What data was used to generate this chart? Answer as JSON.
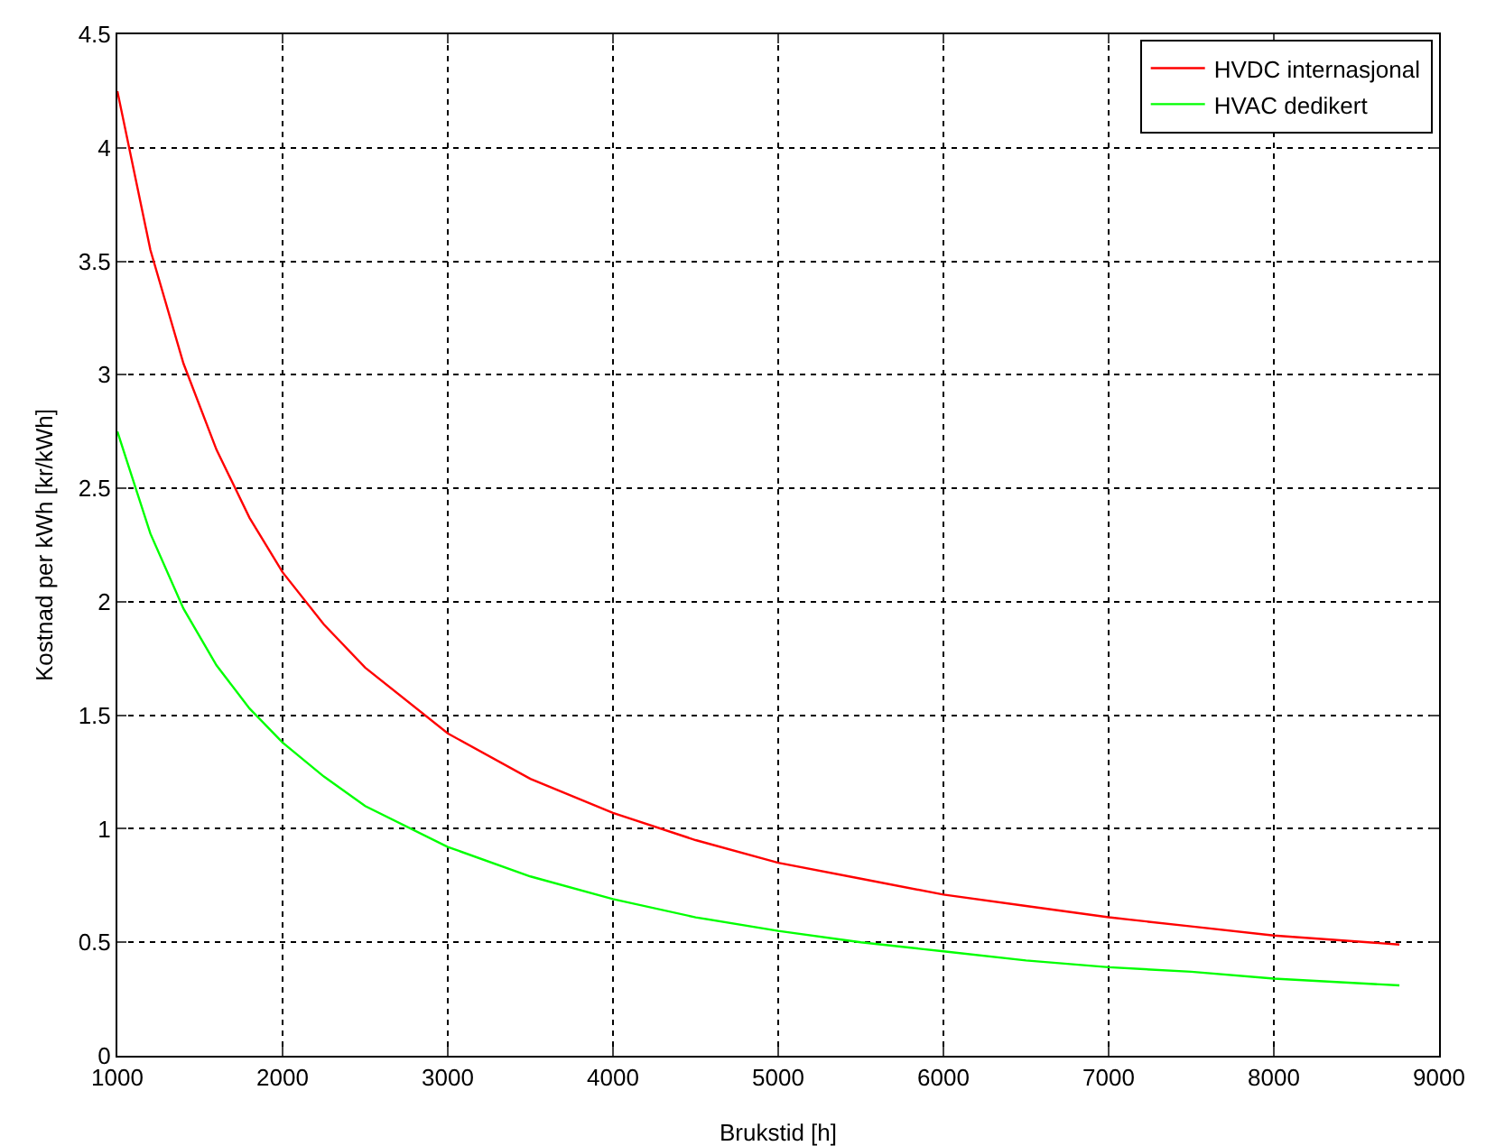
{
  "chart_data": {
    "type": "line",
    "xlabel": "Brukstid [h]",
    "ylabel": "Kostnad per kWh [kr/kWh]",
    "x": [
      1000,
      1200,
      1400,
      1600,
      1800,
      2000,
      2250,
      2500,
      3000,
      3500,
      4000,
      4500,
      5000,
      5500,
      6000,
      6500,
      7000,
      7500,
      8000,
      8760
    ],
    "series": [
      {
        "name": "HVDC internasjonal",
        "color": "#ff0000",
        "values": [
          4.25,
          3.55,
          3.05,
          2.67,
          2.37,
          2.13,
          1.9,
          1.71,
          1.42,
          1.22,
          1.07,
          0.95,
          0.85,
          0.78,
          0.71,
          0.66,
          0.61,
          0.57,
          0.53,
          0.49
        ]
      },
      {
        "name": "HVAC dedikert",
        "color": "#00ff00",
        "values": [
          2.75,
          2.3,
          1.97,
          1.72,
          1.53,
          1.38,
          1.23,
          1.1,
          0.92,
          0.79,
          0.69,
          0.61,
          0.55,
          0.5,
          0.46,
          0.42,
          0.39,
          0.37,
          0.34,
          0.31
        ]
      }
    ],
    "xlim": [
      1000,
      9000
    ],
    "xticks": [
      1000,
      2000,
      3000,
      4000,
      5000,
      6000,
      7000,
      8000,
      9000
    ],
    "ylim": [
      0,
      4.5
    ],
    "yticks": [
      0,
      0.5,
      1,
      1.5,
      2,
      2.5,
      3,
      3.5,
      4,
      4.5
    ],
    "grid": true,
    "legend": "top right",
    "marker": "none",
    "line_style": "solid"
  }
}
